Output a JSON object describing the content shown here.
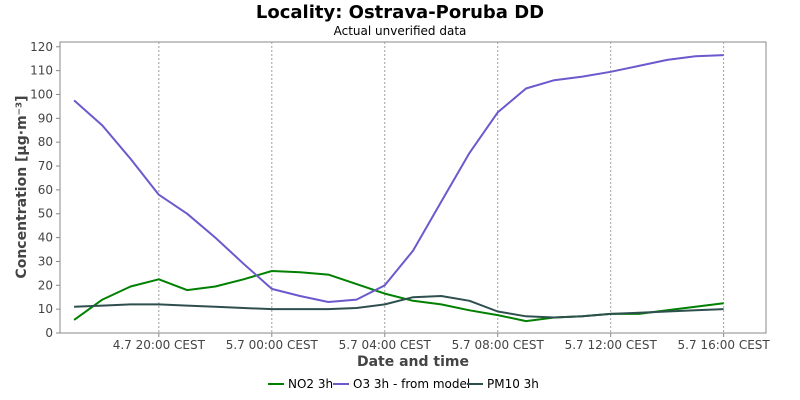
{
  "chart_data": {
    "type": "line",
    "title": "Locality: Ostrava-Poruba DD",
    "subtitle": "Actual unverified data",
    "xlabel": "Date and time",
    "ylabel": "Concentration [µg·m⁻³]",
    "ylim": [
      0,
      122
    ],
    "yticks": [
      0,
      10,
      20,
      30,
      40,
      50,
      60,
      70,
      80,
      90,
      100,
      110,
      120
    ],
    "x_ticks": [
      {
        "x": 3,
        "label": "4.7 20:00 CEST"
      },
      {
        "x": 7,
        "label": "5.7 00:00 CEST"
      },
      {
        "x": 11,
        "label": "5.7 04:00 CEST"
      },
      {
        "x": 15,
        "label": "5.7 08:00 CEST"
      },
      {
        "x": 19,
        "label": "5.7 12:00 CEST"
      },
      {
        "x": 23,
        "label": "5.7 16:00 CEST"
      }
    ],
    "xlim": [
      -0.5,
      24.5
    ],
    "x": [
      0,
      1,
      2,
      3,
      4,
      5,
      6,
      7,
      8,
      9,
      10,
      11,
      12,
      13,
      14,
      15,
      16,
      17,
      18,
      19,
      20,
      21,
      22,
      23,
      24
    ],
    "grid": true,
    "legend_position": "bottom",
    "series": [
      {
        "name": "NO2 3h",
        "color": "#008000",
        "values": [
          5.5,
          14,
          19.5,
          22.5,
          18,
          19.5,
          22.5,
          26,
          25.5,
          24.5,
          20.5,
          16.5,
          13.5,
          12,
          9.5,
          7.5,
          5,
          6.5,
          7,
          8,
          8,
          9.5,
          11,
          12.5,
          null
        ]
      },
      {
        "name": "O3 3h - from model",
        "color": "#6a5acd",
        "values": [
          97.5,
          87,
          73,
          58,
          50,
          40,
          29,
          18.5,
          15.5,
          13,
          14,
          20,
          34.5,
          55,
          75.5,
          92.5,
          102.5,
          106,
          107.5,
          109.5,
          112,
          114.5,
          116,
          116.5,
          null
        ]
      },
      {
        "name": "PM10 3h",
        "color": "#2f4f4f",
        "values": [
          11,
          11.5,
          12,
          12,
          11.5,
          11,
          10.5,
          10,
          10,
          10,
          10.5,
          12,
          15,
          15.5,
          13.5,
          9,
          7,
          6.5,
          7,
          8,
          8.5,
          9,
          9.5,
          10,
          null
        ]
      }
    ]
  }
}
